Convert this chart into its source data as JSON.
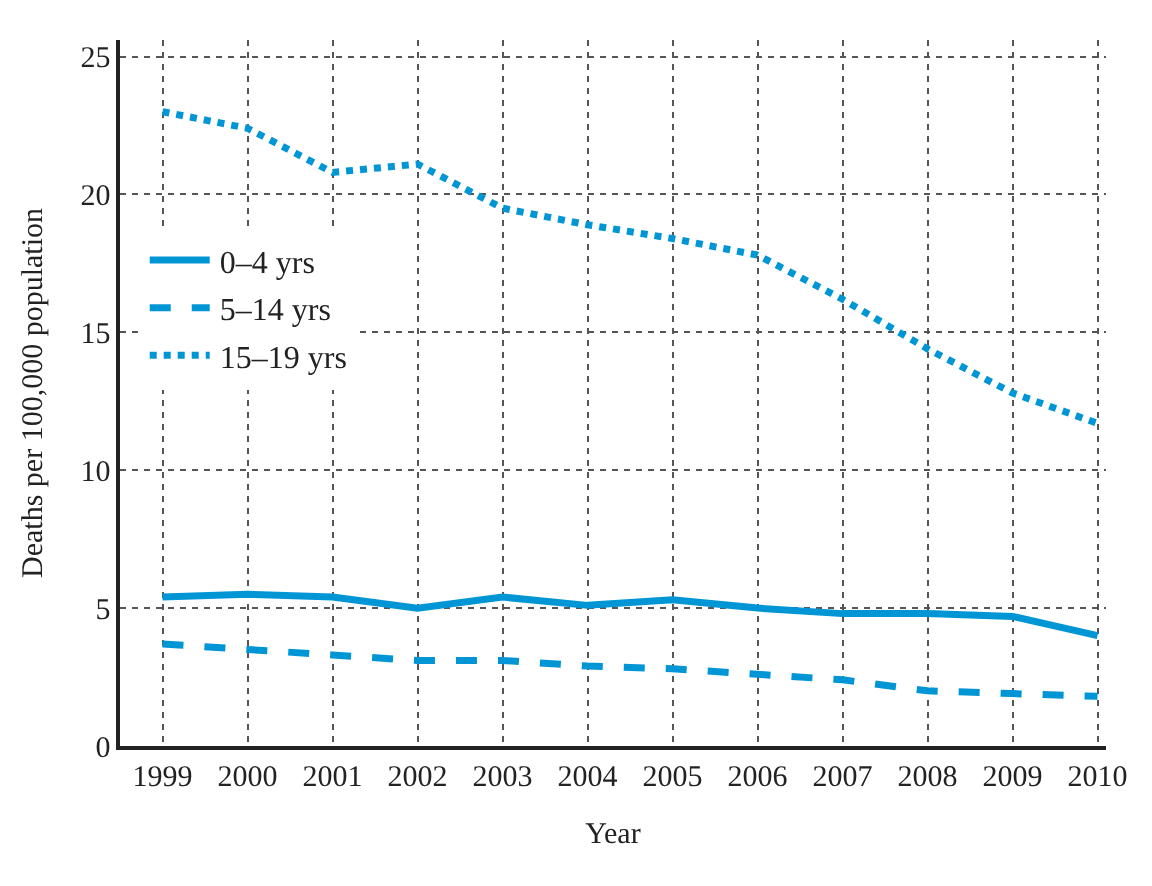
{
  "chart_data": {
    "type": "line",
    "xlabel": "Year",
    "ylabel": "Deaths per 100,000 population",
    "x": [
      1999,
      2000,
      2001,
      2002,
      2003,
      2004,
      2005,
      2006,
      2007,
      2008,
      2009,
      2010
    ],
    "series": [
      {
        "name": "0–4 yrs",
        "color": "#0096d6",
        "line_style": "solid",
        "values": [
          5.4,
          5.5,
          5.4,
          5.0,
          5.4,
          5.1,
          5.3,
          5.0,
          4.8,
          4.8,
          4.7,
          4.0
        ]
      },
      {
        "name": "5–14 yrs",
        "color": "#0096d6",
        "line_style": "dashed",
        "values": [
          3.7,
          3.5,
          3.3,
          3.1,
          3.1,
          2.9,
          2.8,
          2.6,
          2.4,
          2.0,
          1.9,
          1.8
        ]
      },
      {
        "name": "15–19 yrs",
        "color": "#0096d6",
        "line_style": "dotted",
        "values": [
          23.0,
          22.4,
          20.8,
          21.1,
          19.5,
          18.9,
          18.4,
          17.8,
          16.2,
          14.4,
          12.8,
          11.7
        ]
      }
    ],
    "xlim": [
      1998.5,
      2010.1
    ],
    "xticks": [
      1999,
      2000,
      2001,
      2002,
      2003,
      2004,
      2005,
      2006,
      2007,
      2008,
      2009,
      2010
    ],
    "ylim": [
      0,
      25.6
    ],
    "yticks": [
      0,
      5,
      10,
      15,
      20,
      25
    ],
    "grid": true,
    "legend": "left",
    "marker": "none"
  }
}
